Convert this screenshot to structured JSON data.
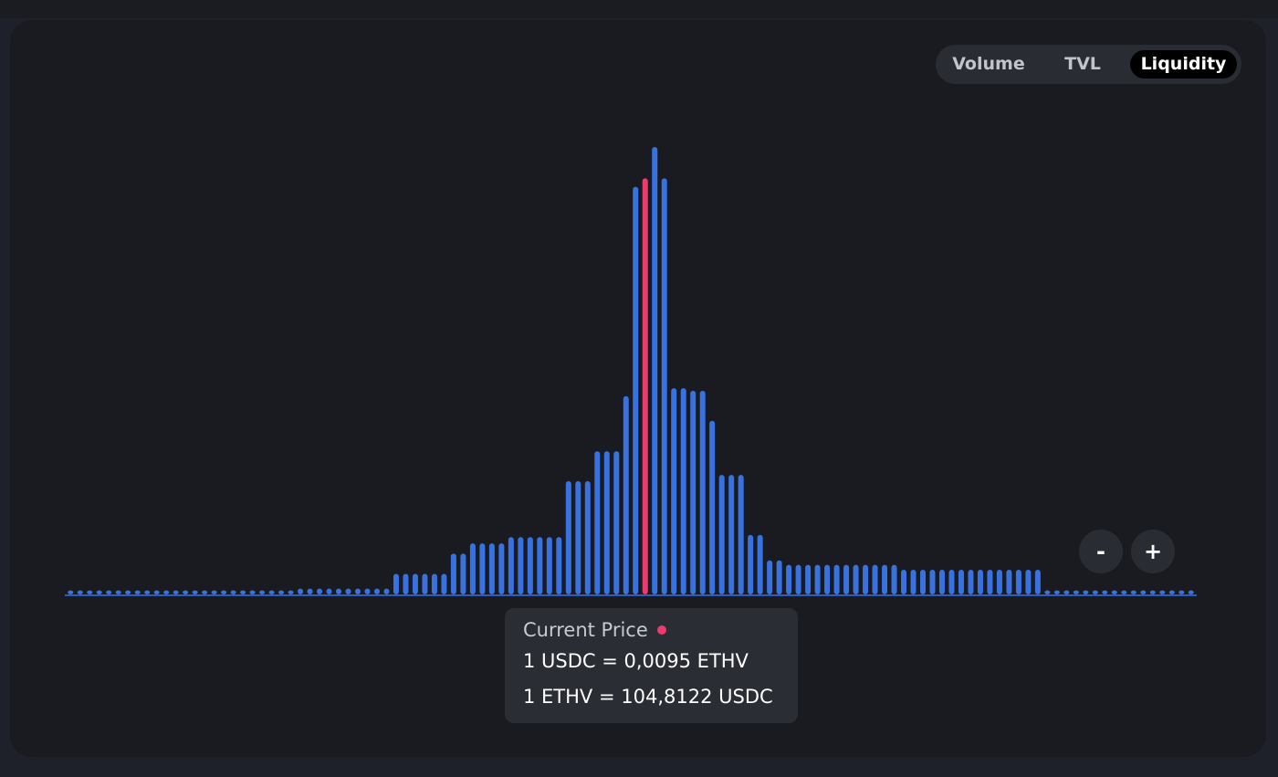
{
  "tabs": [
    {
      "label": "Volume",
      "active": false
    },
    {
      "label": "TVL",
      "active": false
    },
    {
      "label": "Liquidity",
      "active": true
    }
  ],
  "zoom": {
    "out_label": "-",
    "in_label": "+"
  },
  "tooltip": {
    "title": "Current Price",
    "line1": "1 USDC = 0,0095 ETHV",
    "line2": "1 ETHV = 104,8122 USDC"
  },
  "colors": {
    "bar": "#3872e1",
    "current": "#ec3b6c",
    "tab_active_bg": "#000000",
    "card_bg": "#1a1b20"
  },
  "chart_data": {
    "type": "bar",
    "title": "",
    "xlabel": "",
    "ylabel": "",
    "ylim": [
      0,
      100
    ],
    "grid": false,
    "current_index": 60,
    "values": [
      0.9,
      0.9,
      0.9,
      0.9,
      0.9,
      0.9,
      0.9,
      0.9,
      0.9,
      0.9,
      0.9,
      0.9,
      0.9,
      0.9,
      0.9,
      0.9,
      0.9,
      0.9,
      0.9,
      0.9,
      0.9,
      0.9,
      0.9,
      0.9,
      1.3,
      1.3,
      1.3,
      1.3,
      1.3,
      1.3,
      1.3,
      1.3,
      1.3,
      1.3,
      4.6,
      4.6,
      4.6,
      4.6,
      4.6,
      4.6,
      9.1,
      9.1,
      11.4,
      11.4,
      11.4,
      11.4,
      12.8,
      12.8,
      12.8,
      12.8,
      12.8,
      12.8,
      25.3,
      25.3,
      25.3,
      32.0,
      32.0,
      32.0,
      44.3,
      91.1,
      93.0,
      100,
      93.0,
      46.1,
      46.1,
      45.5,
      45.5,
      38.8,
      26.7,
      26.7,
      26.7,
      13.3,
      13.3,
      7.6,
      7.6,
      6.6,
      6.6,
      6.6,
      6.6,
      6.6,
      6.6,
      6.6,
      6.6,
      6.6,
      6.6,
      6.6,
      6.6,
      5.5,
      5.5,
      5.5,
      5.5,
      5.5,
      5.5,
      5.5,
      5.5,
      5.5,
      5.5,
      5.5,
      5.5,
      5.5,
      5.5,
      5.5,
      0.9,
      0.9,
      0.9,
      0.9,
      0.9,
      0.9,
      0.9,
      0.9,
      0.9,
      0.9,
      0.9,
      0.9,
      0.9,
      0.9,
      0.9,
      0.9
    ]
  }
}
